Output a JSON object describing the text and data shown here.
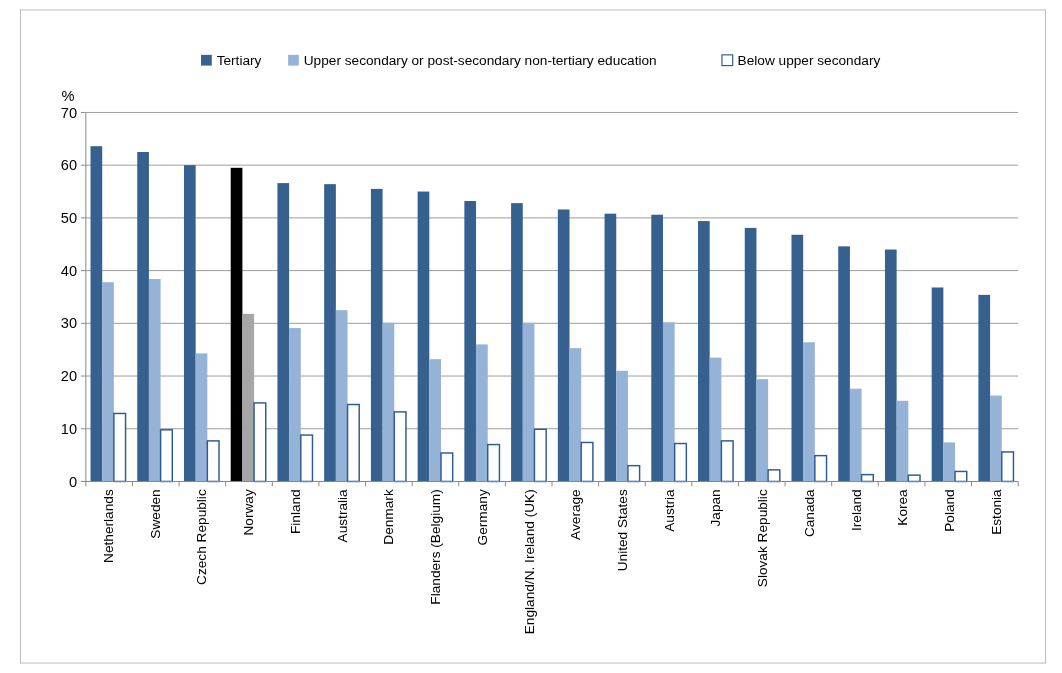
{
  "chart_data": {
    "type": "bar",
    "ylabel": "%",
    "categories": [
      "Netherlands",
      "Sweden",
      "Czech Republic",
      "Norway",
      "Finland",
      "Australia",
      "Denmark",
      "Flanders (Belgium)",
      "Germany",
      "England/N. Ireland (UK)",
      "Average",
      "United States",
      "Austria",
      "Japan",
      "Slovak Republic",
      "Canada",
      "Ireland",
      "Korea",
      "Poland",
      "Estonia"
    ],
    "series": [
      {
        "name": "Tertiary",
        "color": "#36618f",
        "colors": [
          "#36618f",
          "#36618f",
          "#36618f",
          "#000000",
          "#36618f",
          "#36618f",
          "#36618f",
          "#36618f",
          "#36618f",
          "#36618f",
          "#36618f",
          "#36618f",
          "#36618f",
          "#36618f",
          "#36618f",
          "#36618f",
          "#36618f",
          "#36618f",
          "#36618f",
          "#36618f"
        ],
        "values": [
          63.6,
          62.5,
          60.0,
          59.5,
          56.6,
          56.4,
          55.5,
          55.0,
          53.2,
          52.8,
          51.6,
          50.8,
          50.6,
          49.4,
          48.1,
          46.8,
          44.6,
          44.0,
          36.8,
          35.4
        ]
      },
      {
        "name": "Upper secondary or post-secondary non-tertiary education",
        "color": "#95b3d7",
        "colors": [
          "#95b3d7",
          "#95b3d7",
          "#95b3d7",
          "#a6a6a6",
          "#95b3d7",
          "#95b3d7",
          "#95b3d7",
          "#95b3d7",
          "#95b3d7",
          "#95b3d7",
          "#95b3d7",
          "#95b3d7",
          "#95b3d7",
          "#95b3d7",
          "#95b3d7",
          "#95b3d7",
          "#95b3d7",
          "#95b3d7",
          "#95b3d7",
          "#95b3d7"
        ],
        "values": [
          37.8,
          38.4,
          24.3,
          31.8,
          29.1,
          32.5,
          30.1,
          23.2,
          26.0,
          30.1,
          25.3,
          21.0,
          30.2,
          23.5,
          19.4,
          26.4,
          17.6,
          15.3,
          7.4,
          16.3
        ]
      },
      {
        "name": "Below upper secondary",
        "color": "#ffffff",
        "values": [
          12.9,
          9.8,
          7.7,
          14.9,
          8.8,
          14.6,
          13.2,
          5.4,
          7.0,
          9.9,
          7.4,
          3.0,
          7.2,
          7.7,
          2.2,
          4.9,
          1.3,
          1.2,
          1.9,
          5.6
        ]
      }
    ],
    "ylim": [
      0,
      70
    ],
    "yticks": [
      0,
      10,
      20,
      30,
      40,
      50,
      60,
      70
    ],
    "grid": "y",
    "legend": "top"
  }
}
